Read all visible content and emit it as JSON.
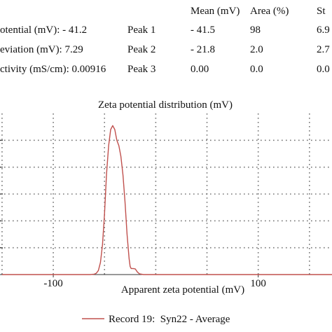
{
  "summary_table": {
    "headers": {
      "mean": "Mean (mV)",
      "area": "Area (%)",
      "stdev": "St"
    },
    "left_rows": [
      {
        "label": "otential (mV): - 41.2"
      },
      {
        "label": "eviation (mV): 7.29"
      },
      {
        "label": "ctivity (mS/cm): 0.00916"
      }
    ],
    "peaks": [
      {
        "name": "Peak 1",
        "mean": "- 41.5",
        "area": "98",
        "stdev": "6.9"
      },
      {
        "name": "Peak 2",
        "mean": "- 21.8",
        "area": "2.0",
        "stdev": "2.7"
      },
      {
        "name": "Peak 3",
        "mean": "0.00",
        "area": "0.0",
        "stdev": "0.0"
      }
    ]
  },
  "chart_data": {
    "type": "line",
    "title": "Zeta potential distribution (mV)",
    "xlabel": "Apparent zeta potential (mV)",
    "ylabel": "",
    "xlim": [
      -152,
      172
    ],
    "ylim": [
      0,
      120
    ],
    "grid": true,
    "x_ticks": [
      {
        "value": -100,
        "label": "-100"
      },
      {
        "value": 100,
        "label": "100"
      }
    ],
    "y_ticks": [
      20,
      40,
      60,
      80,
      100
    ],
    "legend_placement": "bottom",
    "series": [
      {
        "name": "Record 19:  Syn22 - Average",
        "color": "#c0504d",
        "points": [
          [
            -150,
            0
          ],
          [
            -75,
            0
          ],
          [
            -64,
            0
          ],
          [
            -60,
            0.3
          ],
          [
            -58,
            1
          ],
          [
            -56,
            3
          ],
          [
            -54,
            9
          ],
          [
            -52,
            22
          ],
          [
            -50,
            45
          ],
          [
            -48,
            75
          ],
          [
            -46,
            96
          ],
          [
            -44,
            108
          ],
          [
            -42,
            111
          ],
          [
            -40,
            108
          ],
          [
            -38,
            100
          ],
          [
            -36,
            96
          ],
          [
            -34,
            88
          ],
          [
            -32,
            74
          ],
          [
            -30,
            54
          ],
          [
            -28,
            30
          ],
          [
            -26,
            12
          ],
          [
            -25,
            6
          ],
          [
            -24,
            4.5
          ],
          [
            -22,
            4.5
          ],
          [
            -20,
            4.2
          ],
          [
            -18,
            2
          ],
          [
            -16,
            0.6
          ],
          [
            -12,
            0
          ],
          [
            172,
            0
          ]
        ]
      }
    ]
  }
}
